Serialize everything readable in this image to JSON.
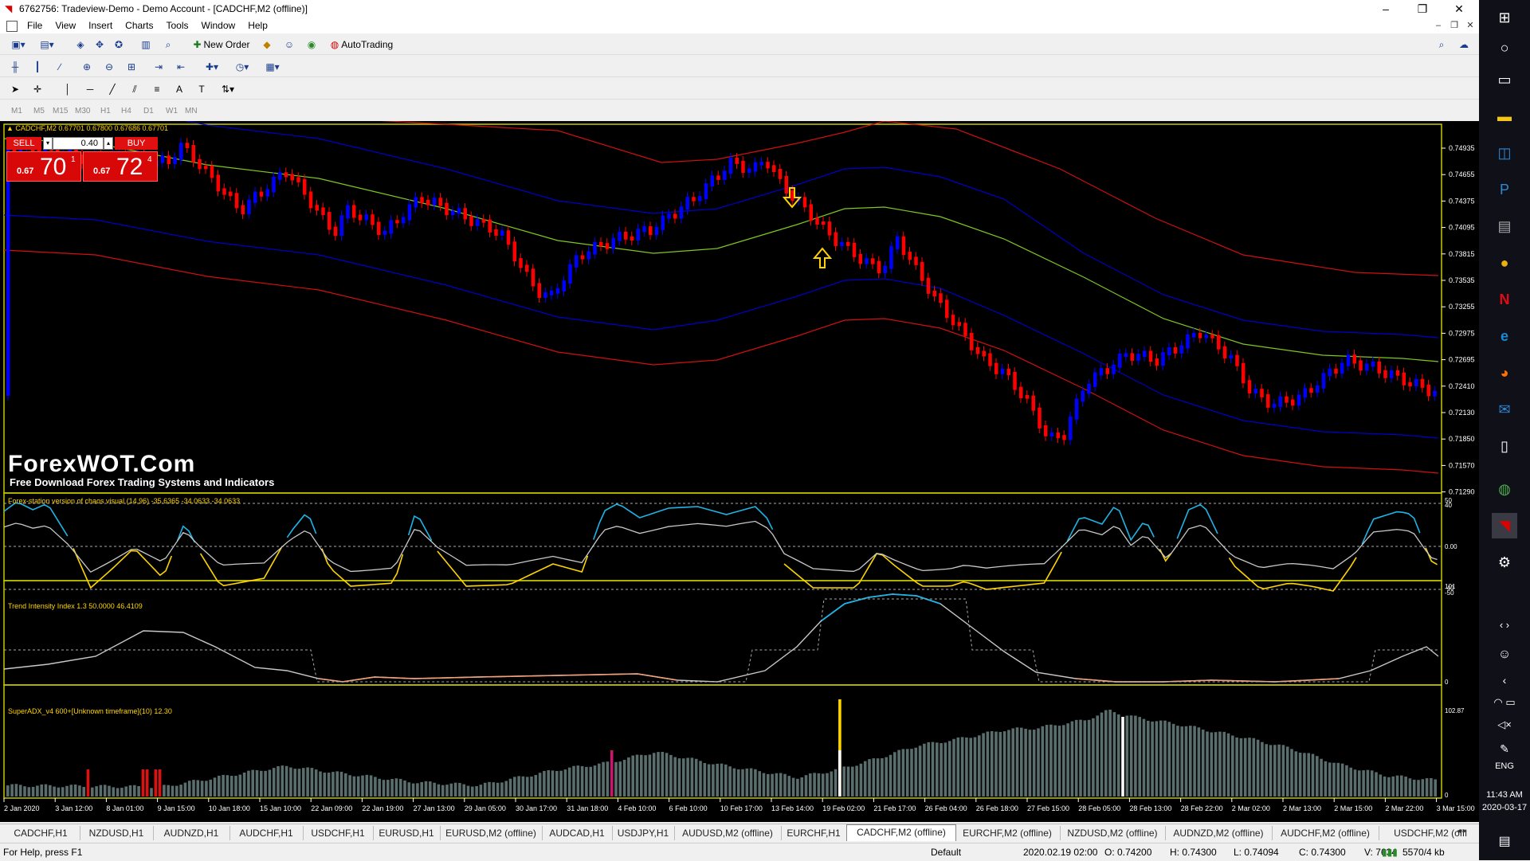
{
  "window": {
    "title": "6762756: Tradeview-Demo - Demo Account - [CADCHF,M2 (offline)]",
    "minimize": "–",
    "maximize": "❐",
    "close": "✕"
  },
  "menu": [
    "File",
    "View",
    "Insert",
    "Charts",
    "Tools",
    "Window",
    "Help"
  ],
  "toolbar": {
    "new_order": "New Order",
    "autotrading": "AutoTrading",
    "timeframes": [
      "M1",
      "M5",
      "M15",
      "M30",
      "H1",
      "H4",
      "D1",
      "W1",
      "MN"
    ]
  },
  "chart": {
    "symbol_info": "CADCHF,M2  0.67701 0.67800 0.67686 0.67701",
    "trade": {
      "sell_label": "SELL",
      "buy_label": "BUY",
      "lot": "0.40",
      "sell_prefix": "0.67",
      "sell_big": "70",
      "sell_sup": "1",
      "buy_prefix": "0.67",
      "buy_big": "72",
      "buy_sup": "4"
    },
    "watermark_title": "ForexWOT.Com",
    "watermark_sub": "Free Download Forex Trading Systems and Indicators",
    "price_labels": [
      "0.74935",
      "0.74655",
      "0.74375",
      "0.74095",
      "0.73815",
      "0.73535",
      "0.73255",
      "0.72975",
      "0.72695",
      "0.72410",
      "0.72130",
      "0.71850",
      "0.71570",
      "0.71290"
    ],
    "panel1_label": "Forex-station version of chaos visual (14,96) -35.6365 -34.0633 -34.0633",
    "panel1_scale": [
      "50",
      "40",
      "0.00",
      "-40",
      "-50"
    ],
    "panel2_label": "Trend Intensity Index 1.3 50.0000 46.4109",
    "panel2_scale": [
      "101",
      "0"
    ],
    "panel3_label": "SuperADX_v4 600+[Unknown timeframe](10) 12.30",
    "panel3_scale": [
      "102.87",
      "0"
    ],
    "time_labels": [
      "2 Jan 2020",
      "3 Jan 12:00",
      "8 Jan 01:00",
      "9 Jan 15:00",
      "10 Jan 18:00",
      "15 Jan 10:00",
      "22 Jan 09:00",
      "22 Jan 19:00",
      "27 Jan 13:00",
      "29 Jan 05:00",
      "30 Jan 17:00",
      "31 Jan 18:00",
      "4 Feb 10:00",
      "6 Feb 10:00",
      "10 Feb 17:00",
      "13 Feb 14:00",
      "19 Feb 02:00",
      "21 Feb 17:00",
      "26 Feb 04:00",
      "26 Feb 18:00",
      "27 Feb 15:00",
      "28 Feb 05:00",
      "28 Feb 13:00",
      "28 Feb 22:00",
      "2 Mar 02:00",
      "2 Mar 13:00",
      "2 Mar 15:00",
      "2 Mar 22:00",
      "3 Mar 15:00"
    ]
  },
  "tabs": [
    "CADCHF,H1",
    "NZDUSD,H1",
    "AUDNZD,H1",
    "AUDCHF,H1",
    "USDCHF,H1",
    "EURUSD,H1",
    "EURUSD,M2 (offline)",
    "AUDCAD,H1",
    "USDJPY,H1",
    "AUDUSD,M2 (offline)",
    "EURCHF,H1",
    "CADCHF,M2 (offline)",
    "EURCHF,M2 (offline)",
    "NZDUSD,M2 (offline)",
    "AUDNZD,M2 (offline)",
    "AUDCHF,M2 (offline)",
    "USDCHF,M2 (offl"
  ],
  "active_tab": "CADCHF,M2 (offline)",
  "status": {
    "help": "For Help, press F1",
    "profile": "Default",
    "time": "2020.02.19 02:00",
    "open": "O: 0.74200",
    "high": "H: 0.74300",
    "low": "L: 0.74094",
    "close": "C: 0.74300",
    "volume": "V: 7634",
    "traffic": "5570/4 kb"
  },
  "taskbar": {
    "time": "11:43 AM",
    "date": "2020-03-17",
    "lang": "ENG"
  },
  "colors": {
    "chart_border": "#c8c800",
    "bull": "#0000ff",
    "bear": "#ff0000",
    "mid_band": "#7ec820",
    "inner_band": "#0000c8",
    "outer_band": "#d01010",
    "aqua": "#1eb4e6",
    "yellow": "#ffd400",
    "osc_gray": "#c8c8c8",
    "orange": "#f5a078"
  }
}
